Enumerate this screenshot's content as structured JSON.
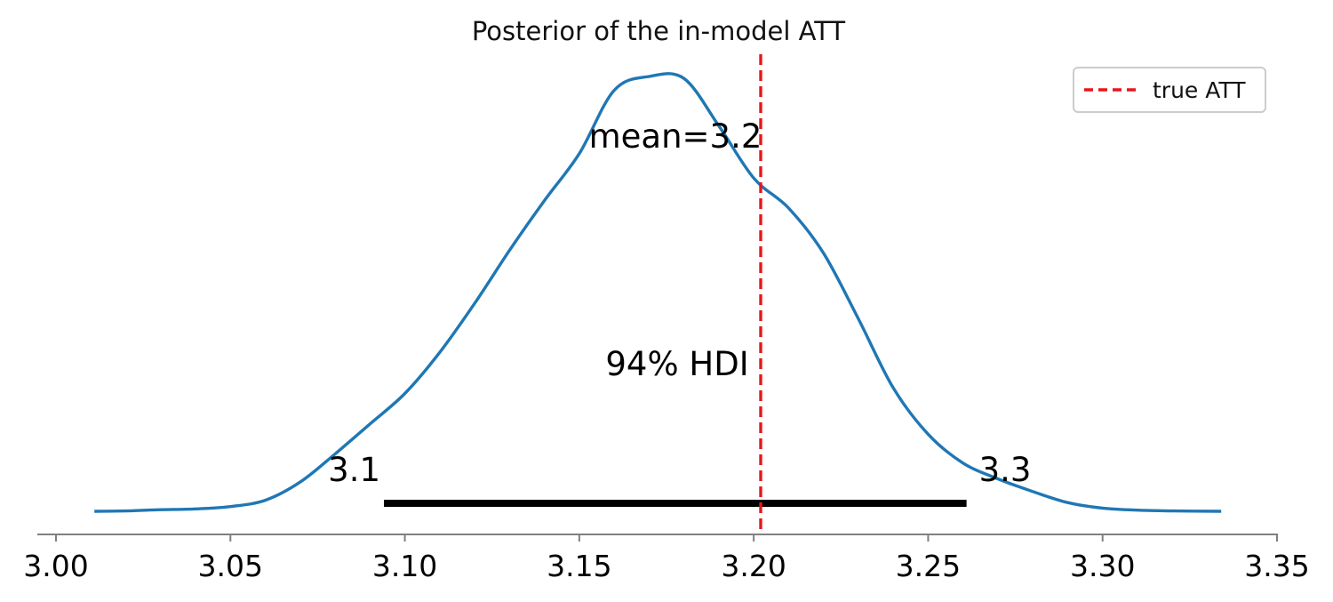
{
  "chart_data": {
    "type": "line",
    "title": "Posterior of the in-model ATT",
    "xlim": [
      3.0,
      3.35
    ],
    "xticks": [
      3.0,
      3.05,
      3.1,
      3.15,
      3.2,
      3.25,
      3.3,
      3.35
    ],
    "xtick_labels": [
      "3.00",
      "3.05",
      "3.10",
      "3.15",
      "3.20",
      "3.25",
      "3.30",
      "3.35"
    ],
    "y_axis_visible": false,
    "grid": false,
    "density": {
      "name": "",
      "color": "#1f77b4",
      "x": [
        3.011,
        3.02,
        3.03,
        3.04,
        3.05,
        3.06,
        3.07,
        3.08,
        3.09,
        3.1,
        3.11,
        3.12,
        3.13,
        3.14,
        3.15,
        3.16,
        3.17,
        3.18,
        3.19,
        3.2,
        3.21,
        3.22,
        3.23,
        3.24,
        3.25,
        3.26,
        3.27,
        3.28,
        3.29,
        3.3,
        3.31,
        3.32,
        3.334
      ],
      "y": [
        0.0,
        0.001,
        0.004,
        0.006,
        0.012,
        0.028,
        0.074,
        0.145,
        0.221,
        0.298,
        0.402,
        0.526,
        0.66,
        0.786,
        0.905,
        1.065,
        1.1,
        1.095,
        0.975,
        0.843,
        0.767,
        0.653,
        0.487,
        0.312,
        0.195,
        0.122,
        0.082,
        0.05,
        0.022,
        0.008,
        0.003,
        0.001,
        0.0
      ]
    },
    "mean_label": "mean=3.2",
    "hdi": {
      "label": "94% HDI",
      "low": 3.094,
      "high": 3.261,
      "low_label": "3.1",
      "high_label": "3.3",
      "color": "#000000"
    },
    "reference_line": {
      "label": "true ATT",
      "x": 3.202,
      "color": "#e8151b",
      "style": "dashed"
    },
    "legend": {
      "placement": "top-right",
      "entries": [
        "true ATT"
      ]
    }
  }
}
